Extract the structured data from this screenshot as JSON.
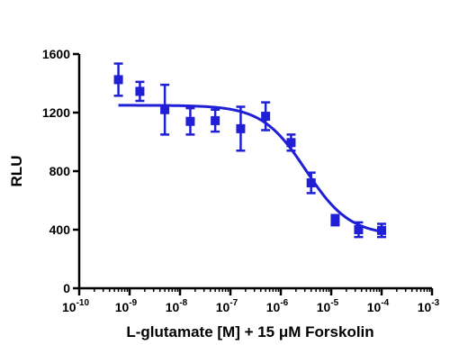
{
  "chart_data": {
    "type": "scatter",
    "xlabel": "L-glutamate [M] + 15 μM Forskolin",
    "ylabel": "RLU",
    "x_scale": "log",
    "xlim": [
      1e-10,
      0.001
    ],
    "ylim": [
      0,
      1600
    ],
    "y_ticks": [
      0,
      400,
      800,
      1200,
      1600
    ],
    "x_tick_exponents": [
      -10,
      -9,
      -8,
      -7,
      -6,
      -5,
      -4,
      -3
    ],
    "x_tick_base": "10",
    "grid": false,
    "color": "#1f1fd6",
    "points": [
      {
        "x": 6e-10,
        "y": 1425,
        "err": 110
      },
      {
        "x": 1.6e-09,
        "y": 1345,
        "err": 65
      },
      {
        "x": 5e-09,
        "y": 1220,
        "err": 170
      },
      {
        "x": 1.6e-08,
        "y": 1140,
        "err": 90
      },
      {
        "x": 5e-08,
        "y": 1145,
        "err": 75
      },
      {
        "x": 1.6e-07,
        "y": 1090,
        "err": 150
      },
      {
        "x": 5e-07,
        "y": 1175,
        "err": 95
      },
      {
        "x": 1.6e-06,
        "y": 995,
        "err": 55
      },
      {
        "x": 4e-06,
        "y": 720,
        "err": 70
      },
      {
        "x": 1.2e-05,
        "y": 465,
        "err": 35
      },
      {
        "x": 3.5e-05,
        "y": 400,
        "err": 50
      },
      {
        "x": 0.0001,
        "y": 395,
        "err": 45
      }
    ],
    "fit": {
      "top": 1250,
      "bottom": 360,
      "log_ic50": -5.5,
      "hill_slope": -1.0
    }
  }
}
